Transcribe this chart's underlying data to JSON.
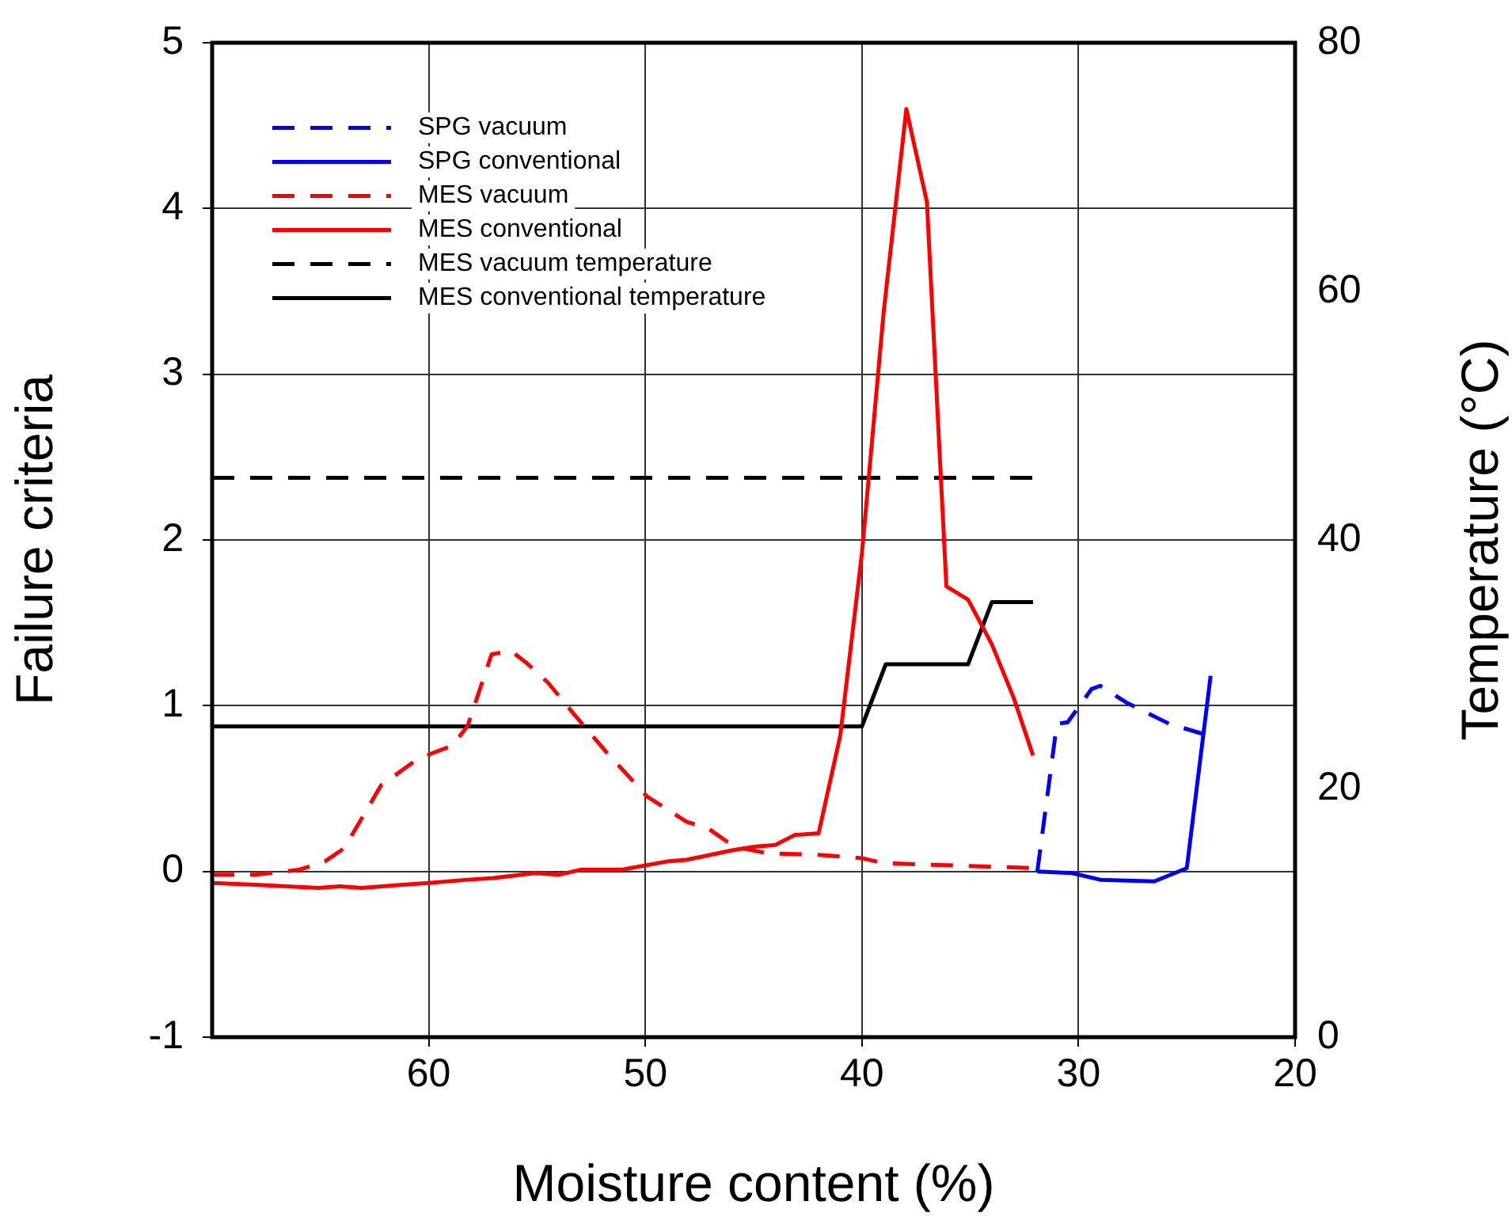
{
  "chart_data": {
    "type": "line",
    "xlabel": "Moisture content (%)",
    "ylabel": "Failure criteria",
    "y2label": "Temperature (°C)",
    "xlim": [
      70,
      20
    ],
    "xticks": [
      60,
      50,
      40,
      30,
      20
    ],
    "ylim": [
      -1,
      5
    ],
    "yticks": [
      -1,
      0,
      1,
      2,
      3,
      4,
      5
    ],
    "y2lim": [
      0,
      80
    ],
    "y2ticks": [
      0,
      20,
      40,
      60,
      80
    ],
    "grid": true,
    "legend": "top left",
    "marker": "none",
    "series": [
      {
        "name": "SPG vacuum",
        "color": "#0000ff",
        "line_style": "dashed",
        "x": [
          31.9,
          31.0,
          30.5,
          29.4,
          29.0,
          27.8,
          25.8,
          24.0
        ],
        "values": [
          0.0,
          0.89,
          0.9,
          1.1,
          1.12,
          1.02,
          0.89,
          0.82
        ]
      },
      {
        "name": "SPG conventional",
        "color": "#0000ff",
        "line_style": "solid",
        "x": [
          31.9,
          30.3,
          29.0,
          26.5,
          25.0,
          23.9
        ],
        "values": [
          0.0,
          -0.01,
          -0.05,
          -0.06,
          0.02,
          1.18
        ]
      },
      {
        "name": "MES vacuum",
        "color": "#ff0000",
        "line_style": "dashed",
        "x": [
          70,
          68,
          66,
          64.8,
          63.9,
          62.2,
          60.6,
          59.9,
          58.9,
          58.2,
          57.1,
          56.2,
          55.5,
          54.5,
          53.3,
          51.8,
          49.9,
          48.1,
          47.1,
          45.9,
          44.4,
          42.0,
          40.0,
          39.0,
          32.0
        ],
        "values": [
          -0.02,
          -0.02,
          0.01,
          0.06,
          0.14,
          0.52,
          0.67,
          0.71,
          0.76,
          0.88,
          1.31,
          1.33,
          1.26,
          1.14,
          0.95,
          0.72,
          0.45,
          0.3,
          0.26,
          0.15,
          0.11,
          0.1,
          0.08,
          0.05,
          0.02
        ]
      },
      {
        "name": "MES conventional",
        "color": "#ff0000",
        "line_style": "solid",
        "x": [
          70,
          68,
          65.1,
          64.1,
          63.1,
          61.2,
          60,
          58.2,
          57,
          55.1,
          54,
          53,
          52.1,
          51.1,
          49,
          48.1,
          45.9,
          44.9,
          44,
          43.1,
          42,
          41,
          40,
          39,
          37.95,
          37,
          36.1,
          35.1,
          34,
          33,
          32.1
        ],
        "values": [
          -0.07,
          -0.08,
          -0.1,
          -0.09,
          -0.1,
          -0.08,
          -0.07,
          -0.05,
          -0.04,
          -0.01,
          -0.02,
          0.01,
          0.01,
          0.01,
          0.06,
          0.07,
          0.13,
          0.15,
          0.16,
          0.22,
          0.23,
          0.82,
          1.92,
          3.37,
          4.6,
          4.04,
          1.72,
          1.64,
          1.37,
          1.05,
          0.7
        ]
      },
      {
        "name": "MES vacuum temperature",
        "color": "#000000",
        "line_style": "dashed",
        "axis": "y2",
        "x": [
          70,
          32.1
        ],
        "values": [
          45,
          45
        ]
      },
      {
        "name": "MES conventional temperature",
        "color": "#000000",
        "line_style": "solid",
        "axis": "y2",
        "x": [
          70,
          40,
          38.9,
          35.1,
          34,
          32.1
        ],
        "values": [
          25,
          25,
          30,
          30,
          35,
          35
        ]
      }
    ]
  }
}
